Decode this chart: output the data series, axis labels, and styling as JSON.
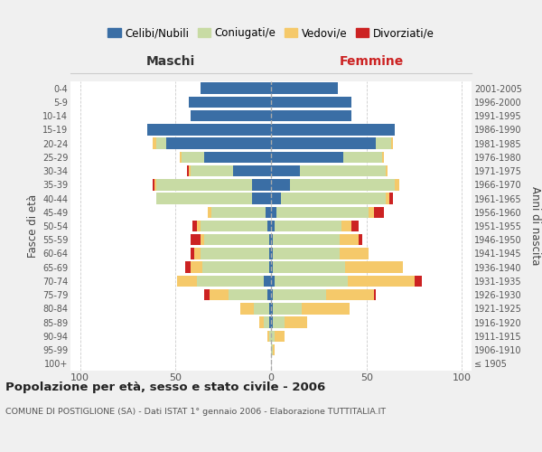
{
  "age_groups": [
    "100+",
    "95-99",
    "90-94",
    "85-89",
    "80-84",
    "75-79",
    "70-74",
    "65-69",
    "60-64",
    "55-59",
    "50-54",
    "45-49",
    "40-44",
    "35-39",
    "30-34",
    "25-29",
    "20-24",
    "15-19",
    "10-14",
    "5-9",
    "0-4"
  ],
  "birth_years": [
    "≤ 1905",
    "1906-1910",
    "1911-1915",
    "1916-1920",
    "1921-1925",
    "1926-1930",
    "1931-1935",
    "1936-1940",
    "1941-1945",
    "1946-1950",
    "1951-1955",
    "1956-1960",
    "1961-1965",
    "1966-1970",
    "1971-1975",
    "1976-1980",
    "1981-1985",
    "1986-1990",
    "1991-1995",
    "1996-2000",
    "2001-2005"
  ],
  "colors": {
    "celibe": "#3a6ea5",
    "coniugato": "#c8dba4",
    "vedovo": "#f5c96a",
    "divorziato": "#cc2222"
  },
  "maschi": {
    "celibe": [
      0,
      0,
      0,
      1,
      1,
      2,
      4,
      1,
      1,
      1,
      2,
      3,
      10,
      10,
      20,
      35,
      55,
      65,
      42,
      43,
      37
    ],
    "coniugato": [
      0,
      0,
      1,
      3,
      8,
      20,
      35,
      35,
      36,
      34,
      35,
      28,
      50,
      50,
      22,
      12,
      5,
      0,
      0,
      0,
      0
    ],
    "vedovo": [
      0,
      0,
      1,
      2,
      7,
      10,
      10,
      6,
      3,
      2,
      2,
      2,
      0,
      1,
      1,
      1,
      2,
      0,
      0,
      0,
      0
    ],
    "divorziato": [
      0,
      0,
      0,
      0,
      0,
      3,
      0,
      3,
      2,
      5,
      2,
      0,
      0,
      1,
      1,
      0,
      0,
      0,
      0,
      0,
      0
    ]
  },
  "femmine": {
    "nubile": [
      0,
      0,
      0,
      1,
      1,
      1,
      2,
      1,
      1,
      1,
      2,
      3,
      5,
      10,
      15,
      38,
      55,
      65,
      42,
      42,
      35
    ],
    "coniugata": [
      0,
      1,
      2,
      6,
      15,
      28,
      38,
      38,
      35,
      35,
      35,
      48,
      55,
      55,
      45,
      20,
      8,
      0,
      0,
      0,
      0
    ],
    "vedova": [
      0,
      1,
      5,
      12,
      25,
      25,
      35,
      30,
      15,
      10,
      5,
      3,
      2,
      2,
      1,
      1,
      1,
      0,
      0,
      0,
      0
    ],
    "divorziata": [
      0,
      0,
      0,
      0,
      0,
      1,
      4,
      0,
      0,
      2,
      4,
      5,
      2,
      0,
      0,
      0,
      0,
      0,
      0,
      0,
      0
    ]
  },
  "title": "Popolazione per età, sesso e stato civile - 2006",
  "subtitle": "COMUNE DI POSTIGLIONE (SA) - Dati ISTAT 1° gennaio 2006 - Elaborazione TUTTITALIA.IT",
  "xlabel_left": "Maschi",
  "xlabel_right": "Femmine",
  "ylabel_left": "Fasce di età",
  "ylabel_right": "Anni di nascita",
  "xlim": 105,
  "legend_labels": [
    "Celibi/Nubili",
    "Coniugati/e",
    "Vedovi/e",
    "Divorziati/e"
  ],
  "bg_color": "#f0f0f0",
  "plot_bg_color": "#ffffff"
}
